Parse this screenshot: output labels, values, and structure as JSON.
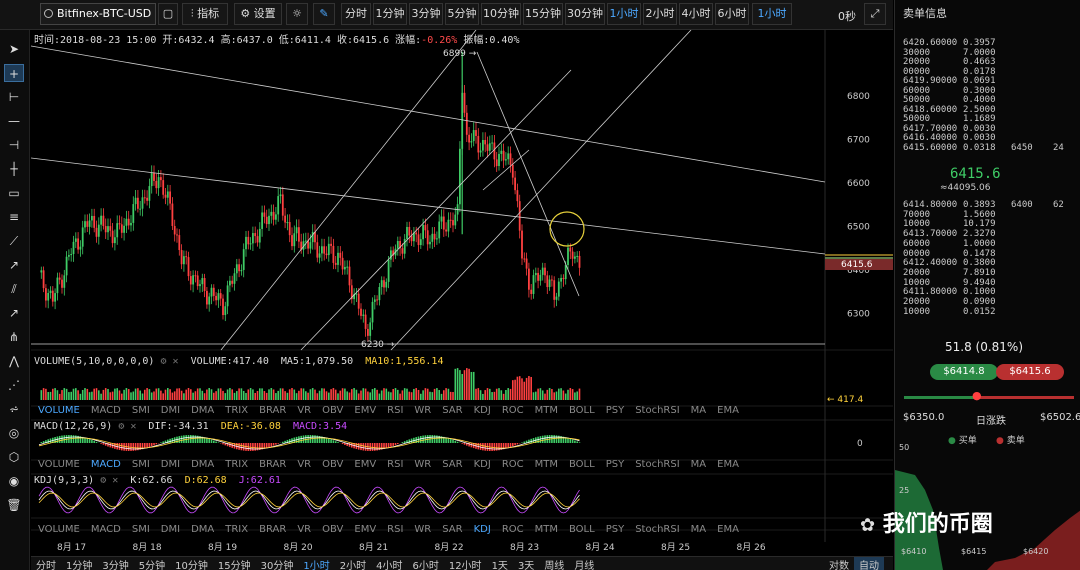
{
  "toolbar": {
    "symbol": "Bitfinex-BTC-USD",
    "indicators_label": "指标",
    "settings_label": "设置",
    "timeframes": [
      "分时",
      "1分钟",
      "3分钟",
      "5分钟",
      "10分钟",
      "15分钟",
      "30分钟",
      "1小时",
      "2小时",
      "4小时",
      "6小时"
    ],
    "active_timeframe": "1小时",
    "dropdown": "1小时",
    "seconds": "0秒"
  },
  "ohlc": {
    "time_label": "时间:",
    "time": "2018-08-23 15:00",
    "open_label": "开:",
    "open": "6432.4",
    "high_label": "高:",
    "high": "6437.0",
    "low_label": "低:",
    "low": "6411.4",
    "close_label": "收:",
    "close": "6415.6",
    "change_label": "涨幅:",
    "change": "-0.26%",
    "amp_label": "振幅:",
    "amp": "0.40%"
  },
  "price_axis": [
    "6800",
    "6700",
    "6600",
    "6500",
    "6400",
    "6300"
  ],
  "current_price_tag": "6415.6",
  "markers": {
    "high": "6899",
    "low": "6230"
  },
  "volume": {
    "head": "VOLUME(5,10,0,0,0,0)",
    "vol_label": "VOLUME:",
    "vol": "417.40",
    "ma5_label": "MA5:",
    "ma5": "1,079.50",
    "ma10_label": "MA10:",
    "ma10": "1,556.14",
    "tag": "417.4"
  },
  "macd": {
    "head": "MACD(12,26,9)",
    "dif": "DIF:-34.31",
    "dea": "DEA:-36.08",
    "macd": "MACD:3.54",
    "zero": "0"
  },
  "kdj": {
    "head": "KDJ(9,3,3)",
    "k": "K:62.66",
    "d": "D:62.68",
    "j": "J:62.61"
  },
  "indicator_tabs": [
    "VOLUME",
    "MACD",
    "SMI",
    "DMI",
    "DMA",
    "TRIX",
    "BRAR",
    "VR",
    "OBV",
    "EMV",
    "RSI",
    "WR",
    "SAR",
    "KDJ",
    "ROC",
    "MTM",
    "BOLL",
    "PSY",
    "StochRSI",
    "MA",
    "EMA"
  ],
  "date_axis": [
    "8月 17",
    "8月 18",
    "8月 19",
    "8月 20",
    "8月 21",
    "8月 22",
    "8月 23",
    "8月 24",
    "8月 25",
    "8月 26"
  ],
  "bottom_periods": [
    "分时",
    "1分钟",
    "3分钟",
    "5分钟",
    "10分钟",
    "15分钟",
    "30分钟",
    "1小时",
    "2小时",
    "4小时",
    "6小时",
    "12小时",
    "1天",
    "3天",
    "周线",
    "月线"
  ],
  "bottom_right": [
    "对数",
    "自动"
  ],
  "orderbook": {
    "title": "卖单信息",
    "asks": [
      [
        "6420.60000",
        "0.3957"
      ],
      [
        "30000",
        "7.0000"
      ],
      [
        "20000",
        "0.4663"
      ],
      [
        "00000",
        "0.0178"
      ],
      [
        "6419.90000",
        "0.0691"
      ],
      [
        "60000",
        "0.3000"
      ],
      [
        "50000",
        "0.4000"
      ],
      [
        "6418.60000",
        "2.5000"
      ],
      [
        "50000",
        "1.1689"
      ],
      [
        "6417.70000",
        "0.0030"
      ],
      [
        "6416.40000",
        "0.0030"
      ],
      [
        "6415.60000",
        "0.0318"
      ]
    ],
    "ask_group": [
      "6450",
      "24"
    ],
    "mid": "6415.6",
    "mid_sub": "≈44095.06",
    "bids": [
      [
        "6414.80000",
        "0.3893"
      ],
      [
        "70000",
        "1.5600"
      ],
      [
        "10000",
        "10.179"
      ],
      [
        "6413.70000",
        "2.3270"
      ],
      [
        "60000",
        "1.0000"
      ],
      [
        "00000",
        "0.1478"
      ],
      [
        "6412.40000",
        "0.3800"
      ],
      [
        "20000",
        "7.8910"
      ],
      [
        "10000",
        "9.4940"
      ],
      [
        "6411.80000",
        "0.1000"
      ],
      [
        "20000",
        "0.0900"
      ],
      [
        "10000",
        "0.0152"
      ]
    ],
    "bid_group": [
      "6400",
      "62"
    ],
    "change": "51.8 (0.81%)",
    "bid_pill": "$6414.8",
    "ask_pill": "$6415.6",
    "low": "$6350.0",
    "range_label": "日涨跌",
    "high": "$6502.6",
    "legend_buy": "买单",
    "legend_sell": "卖单",
    "depth_y": [
      "50",
      "25"
    ],
    "depth_x": [
      "$6410",
      "$6415",
      "$6420"
    ]
  },
  "watermark": "我们的币圈",
  "colors": {
    "up": "#3fcc66",
    "down": "#ff4040",
    "accent": "#4ca8ff",
    "ma10": "#ffd23c"
  }
}
